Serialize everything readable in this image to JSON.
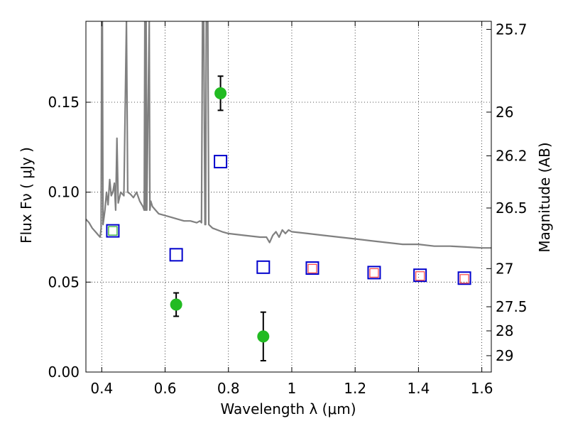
{
  "chart_data": {
    "type": "scatter",
    "xlabel": "Wavelength  λ (μm)",
    "ylabel": "Flux  Fν  ( μJy )",
    "ylabel_right": "Magnitude (AB)",
    "xlim": [
      0.35,
      1.63
    ],
    "ylim": [
      0.0,
      0.195
    ],
    "x_ticks": [
      0.4,
      0.6,
      0.8,
      1.0,
      1.2,
      1.4,
      1.6
    ],
    "x_tick_labels": [
      "0.4",
      "0.6",
      "0.8",
      "1",
      "1.2",
      "1.4",
      "1.6"
    ],
    "y_ticks": [
      0.0,
      0.05,
      0.1,
      0.15
    ],
    "y_tick_labels": [
      "0.00",
      "0.05",
      "0.10",
      "0.15"
    ],
    "right_ticks": [
      {
        "flux": 0.1905,
        "label": "25.7"
      },
      {
        "flux": 0.1445,
        "label": "26"
      },
      {
        "flux": 0.1202,
        "label": "26.2"
      },
      {
        "flux": 0.0912,
        "label": "26.5"
      },
      {
        "flux": 0.0575,
        "label": "27"
      },
      {
        "flux": 0.0363,
        "label": "27.5"
      },
      {
        "flux": 0.0229,
        "label": "28"
      },
      {
        "flux": 0.0091,
        "label": "29"
      }
    ],
    "grid": true,
    "observed": {
      "color": "#22bb22",
      "points": [
        {
          "x": 0.635,
          "y": 0.0375,
          "err": 0.0065
        },
        {
          "x": 0.775,
          "y": 0.155,
          "err": 0.0095
        },
        {
          "x": 0.91,
          "y": 0.0198,
          "err": 0.0135
        }
      ]
    },
    "model_blue": {
      "color": "#0000cc",
      "points": [
        {
          "x": 0.435,
          "y": 0.0785
        },
        {
          "x": 0.635,
          "y": 0.0652
        },
        {
          "x": 0.775,
          "y": 0.117
        },
        {
          "x": 0.91,
          "y": 0.0583
        },
        {
          "x": 1.065,
          "y": 0.0578
        },
        {
          "x": 1.26,
          "y": 0.0553
        },
        {
          "x": 1.405,
          "y": 0.0538
        },
        {
          "x": 1.545,
          "y": 0.0522
        }
      ]
    },
    "model_red": {
      "color": "#ff4444",
      "points": [
        {
          "x": 1.065,
          "y": 0.0575
        },
        {
          "x": 1.26,
          "y": 0.0551
        },
        {
          "x": 1.405,
          "y": 0.0534
        },
        {
          "x": 1.545,
          "y": 0.0518
        }
      ]
    },
    "model_green": {
      "color": "#22aa22",
      "points": [
        {
          "x": 0.435,
          "y": 0.0785
        }
      ]
    },
    "sed_line": {
      "color": "#808080",
      "points": [
        [
          0.35,
          0.085
        ],
        [
          0.36,
          0.083
        ],
        [
          0.37,
          0.08
        ],
        [
          0.38,
          0.078
        ],
        [
          0.39,
          0.076
        ],
        [
          0.395,
          0.075
        ],
        [
          0.398,
          0.08
        ],
        [
          0.4,
          0.195
        ],
        [
          0.402,
          0.195
        ],
        [
          0.404,
          0.082
        ],
        [
          0.41,
          0.09
        ],
        [
          0.415,
          0.1
        ],
        [
          0.42,
          0.093
        ],
        [
          0.425,
          0.107
        ],
        [
          0.43,
          0.098
        ],
        [
          0.435,
          0.1
        ],
        [
          0.44,
          0.105
        ],
        [
          0.444,
          0.09
        ],
        [
          0.448,
          0.13
        ],
        [
          0.452,
          0.094
        ],
        [
          0.46,
          0.1
        ],
        [
          0.47,
          0.098
        ],
        [
          0.478,
          0.195
        ],
        [
          0.482,
          0.1
        ],
        [
          0.49,
          0.099
        ],
        [
          0.5,
          0.097
        ],
        [
          0.51,
          0.1
        ],
        [
          0.52,
          0.095
        ],
        [
          0.53,
          0.092
        ],
        [
          0.534,
          0.09
        ],
        [
          0.536,
          0.195
        ],
        [
          0.538,
          0.09
        ],
        [
          0.54,
          0.195
        ],
        [
          0.542,
          0.09
        ],
        [
          0.55,
          0.195
        ],
        [
          0.552,
          0.09
        ],
        [
          0.555,
          0.095
        ],
        [
          0.56,
          0.092
        ],
        [
          0.57,
          0.09
        ],
        [
          0.58,
          0.088
        ],
        [
          0.6,
          0.087
        ],
        [
          0.62,
          0.086
        ],
        [
          0.64,
          0.085
        ],
        [
          0.66,
          0.084
        ],
        [
          0.68,
          0.084
        ],
        [
          0.7,
          0.083
        ],
        [
          0.71,
          0.084
        ],
        [
          0.715,
          0.083
        ],
        [
          0.718,
          0.195
        ],
        [
          0.722,
          0.195
        ],
        [
          0.726,
          0.082
        ],
        [
          0.728,
          0.082
        ],
        [
          0.73,
          0.195
        ],
        [
          0.735,
          0.195
        ],
        [
          0.738,
          0.082
        ],
        [
          0.75,
          0.08
        ],
        [
          0.78,
          0.078
        ],
        [
          0.8,
          0.077
        ],
        [
          0.85,
          0.076
        ],
        [
          0.9,
          0.075
        ],
        [
          0.92,
          0.075
        ],
        [
          0.93,
          0.072
        ],
        [
          0.94,
          0.076
        ],
        [
          0.95,
          0.078
        ],
        [
          0.96,
          0.075
        ],
        [
          0.97,
          0.079
        ],
        [
          0.98,
          0.077
        ],
        [
          0.99,
          0.079
        ],
        [
          1.0,
          0.078
        ],
        [
          1.05,
          0.077
        ],
        [
          1.1,
          0.076
        ],
        [
          1.15,
          0.075
        ],
        [
          1.2,
          0.074
        ],
        [
          1.25,
          0.073
        ],
        [
          1.3,
          0.072
        ],
        [
          1.35,
          0.071
        ],
        [
          1.4,
          0.071
        ],
        [
          1.45,
          0.07
        ],
        [
          1.5,
          0.07
        ],
        [
          1.55,
          0.0695
        ],
        [
          1.6,
          0.069
        ],
        [
          1.63,
          0.069
        ]
      ]
    }
  }
}
